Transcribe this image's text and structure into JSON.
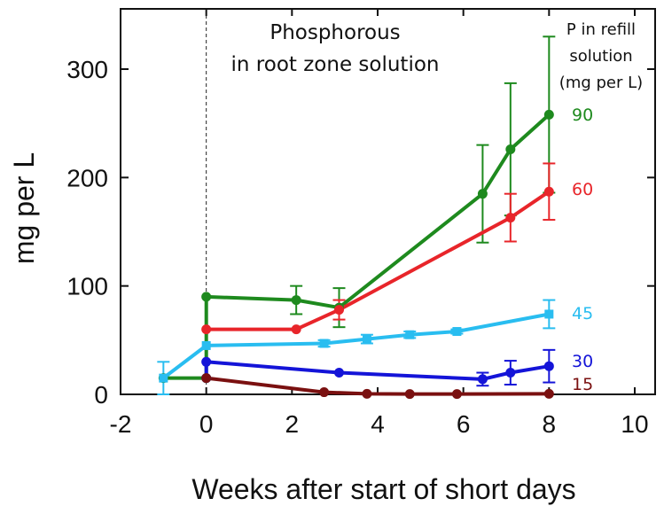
{
  "chart_data": {
    "type": "line",
    "xlabel": "Weeks after start of short days",
    "ylabel": "mg per L",
    "xlim": [
      -2,
      10
    ],
    "ylim": [
      0,
      350
    ],
    "xticks": [
      -2,
      0,
      2,
      4,
      6,
      8,
      10
    ],
    "yticks": [
      0,
      100,
      200,
      300
    ],
    "grid": false,
    "reference_line_x": 0,
    "annotation": [
      "Phosphorous",
      "in root zone solution"
    ],
    "legend_title": [
      "P in refill",
      "solution",
      "(mg per L)"
    ],
    "series": [
      {
        "name": "90",
        "color": "#1e8a1e",
        "marker": "circle",
        "points": [
          {
            "x": -1,
            "y": 15
          },
          {
            "x": 0,
            "y": 15
          },
          {
            "x": 0,
            "y": 90
          },
          {
            "x": 2.1,
            "y": 87,
            "err": 13
          },
          {
            "x": 3.1,
            "y": 80,
            "err": 18
          },
          {
            "x": 6.45,
            "y": 185,
            "err": 45
          },
          {
            "x": 7.1,
            "y": 226,
            "err": 61
          },
          {
            "x": 8,
            "y": 258,
            "err": 72
          }
        ]
      },
      {
        "name": "60",
        "color": "#e8252a",
        "marker": "circle",
        "points": [
          {
            "x": 0,
            "y": 60
          },
          {
            "x": 2.1,
            "y": 60
          },
          {
            "x": 3.1,
            "y": 78,
            "err": 9
          },
          {
            "x": 7.1,
            "y": 163,
            "err": 22
          },
          {
            "x": 8,
            "y": 187,
            "err": 26
          }
        ]
      },
      {
        "name": "45",
        "color": "#29bdf0",
        "marker": "square",
        "points": [
          {
            "x": -1,
            "y": 15,
            "err": 15
          },
          {
            "x": 0,
            "y": 45
          },
          {
            "x": 2.75,
            "y": 47,
            "err": 3
          },
          {
            "x": 3.75,
            "y": 51,
            "err": 4
          },
          {
            "x": 4.75,
            "y": 55,
            "err": 3
          },
          {
            "x": 5.85,
            "y": 58,
            "err": 2
          },
          {
            "x": 8,
            "y": 74,
            "err": 13
          }
        ]
      },
      {
        "name": "30",
        "color": "#1414d8",
        "marker": "circle",
        "points": [
          {
            "x": 0,
            "y": 15
          },
          {
            "x": 0,
            "y": 30
          },
          {
            "x": 3.1,
            "y": 20
          },
          {
            "x": 6.45,
            "y": 14,
            "err": 6
          },
          {
            "x": 7.1,
            "y": 20,
            "err": 11
          },
          {
            "x": 8,
            "y": 26,
            "err": 15
          }
        ]
      },
      {
        "name": "15",
        "color": "#7a1010",
        "marker": "circle",
        "points": [
          {
            "x": 0,
            "y": 15
          },
          {
            "x": 2.75,
            "y": 2
          },
          {
            "x": 3.75,
            "y": 0.5
          },
          {
            "x": 4.75,
            "y": 0.3
          },
          {
            "x": 5.85,
            "y": 0.3
          },
          {
            "x": 8,
            "y": 0.5
          }
        ]
      }
    ]
  }
}
